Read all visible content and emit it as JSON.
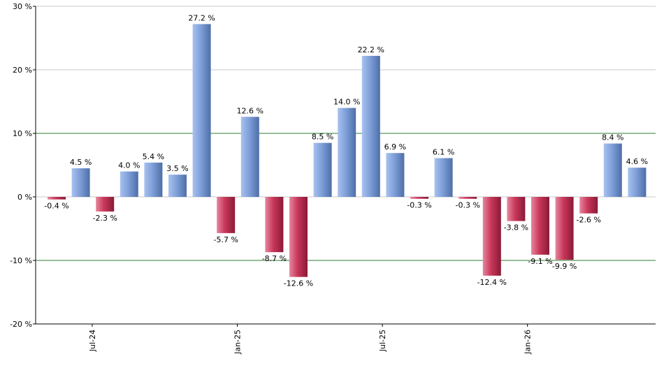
{
  "chart_data": {
    "type": "bar",
    "title": "",
    "xlabel": "",
    "ylabel": "",
    "ylim": [
      -20,
      30
    ],
    "y_ticks": [
      30,
      20,
      10,
      0,
      -10,
      -20
    ],
    "y_tick_labels": [
      "30 %",
      "20 %",
      "10 %",
      "0 %",
      "-10 %",
      "-20 %"
    ],
    "x_tick_labels": [
      {
        "label": "Jul-24",
        "index": 2
      },
      {
        "label": "Jan-25",
        "index": 8
      },
      {
        "label": "Jul-25",
        "index": 14
      },
      {
        "label": "Jan-26",
        "index": 20
      }
    ],
    "reference_lines": [
      10,
      -10
    ],
    "grid": true,
    "legend": "none",
    "values": [
      -0.4,
      4.5,
      -2.3,
      4.0,
      5.4,
      3.5,
      27.2,
      -5.7,
      12.6,
      -8.7,
      -12.6,
      8.5,
      14.0,
      22.2,
      6.9,
      -0.3,
      6.1,
      -0.3,
      -12.4,
      -3.8,
      -9.1,
      -9.9,
      -2.6,
      8.4,
      4.6
    ],
    "value_labels": [
      "-0.4 %",
      "4.5 %",
      "-2.3 %",
      "4.0 %",
      "5.4 %",
      "3.5 %",
      "27.2 %",
      "-5.7 %",
      "12.6 %",
      "-8.7 %",
      "-12.6 %",
      "8.5 %",
      "14.0 %",
      "22.2 %",
      "6.9 %",
      "-0.3 %",
      "6.1 %",
      "-0.3 %",
      "-12.4 %",
      "-3.8 %",
      "-9.1 %",
      "-9.9 %",
      "-2.6 %",
      "8.4 %",
      "4.6 %"
    ],
    "colors": {
      "positive": "#7f9fd9",
      "positive_light": "#a8c2f0",
      "positive_dark": "#4e6ea8",
      "negative": "#c8375a",
      "negative_light": "#e8869e",
      "negative_dark": "#8a1a36",
      "gridline": "#c8c8c8",
      "reference_line": "#2e7d32",
      "axis": "#000000"
    }
  }
}
